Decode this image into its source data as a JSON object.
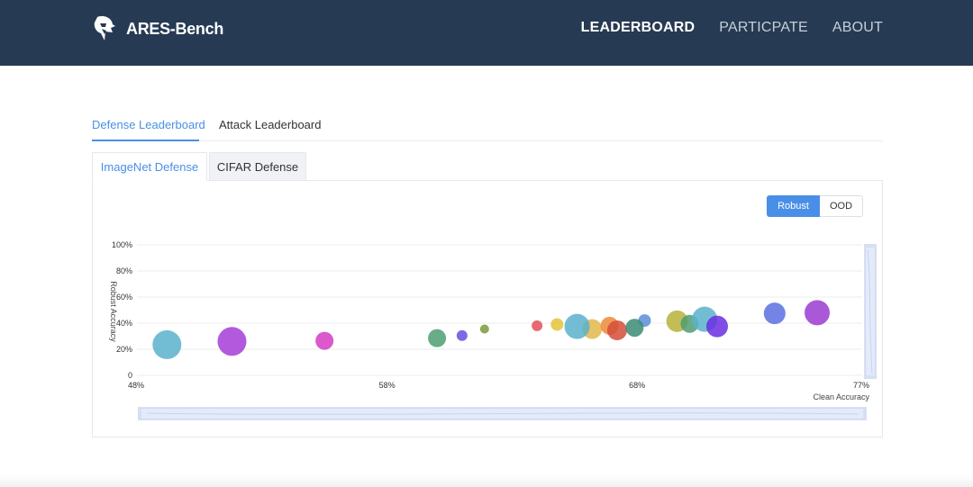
{
  "brand": {
    "name": "ARES-Bench",
    "logo_icon": "spartan-helmet-icon"
  },
  "nav": {
    "items": [
      {
        "label": "LEADERBOARD",
        "active": true
      },
      {
        "label": "PARTICPATE",
        "active": false
      },
      {
        "label": "ABOUT",
        "active": false
      }
    ]
  },
  "main_tabs": [
    {
      "label": "Defense Leaderboard",
      "active": true
    },
    {
      "label": "Attack Leaderboard",
      "active": false
    }
  ],
  "sub_tabs": [
    {
      "label": "ImageNet Defense",
      "active": true
    },
    {
      "label": "CIFAR Defense",
      "active": false
    }
  ],
  "toggle": {
    "options": [
      "Robust",
      "OOD"
    ],
    "selected": "Robust"
  },
  "colors": {
    "nav_bg": "#263a53",
    "accent": "#4a8fe7"
  },
  "chart_data": {
    "type": "scatter",
    "xlabel": "Clean Accuracy",
    "ylabel": "Robust  Accuracy",
    "x_ticks": [
      "48%",
      "58%",
      "68%",
      "77%"
    ],
    "y_ticks": [
      "0",
      "20%",
      "40%",
      "60%",
      "80%",
      "100%"
    ],
    "xlim": [
      48,
      77
    ],
    "ylim": [
      0,
      100
    ],
    "points": [
      {
        "x": 49.2,
        "y": 23.5,
        "size": 16,
        "color": "#5ab1cc"
      },
      {
        "x": 51.8,
        "y": 26.0,
        "size": 16,
        "color": "#a63cd8"
      },
      {
        "x": 55.5,
        "y": 26.5,
        "size": 10,
        "color": "#d43cc4"
      },
      {
        "x": 60.0,
        "y": 28.5,
        "size": 10,
        "color": "#4d9e73"
      },
      {
        "x": 61.0,
        "y": 30.5,
        "size": 6,
        "color": "#6a4ee0"
      },
      {
        "x": 61.9,
        "y": 35.5,
        "size": 5,
        "color": "#7a9a3a"
      },
      {
        "x": 64.0,
        "y": 38.0,
        "size": 6,
        "color": "#e25059"
      },
      {
        "x": 64.8,
        "y": 39.0,
        "size": 7,
        "color": "#e3c43a"
      },
      {
        "x": 66.2,
        "y": 35.5,
        "size": 11,
        "color": "#e0b84b"
      },
      {
        "x": 66.9,
        "y": 38.0,
        "size": 10,
        "color": "#ec8a3a"
      },
      {
        "x": 67.2,
        "y": 34.5,
        "size": 11,
        "color": "#d34e3a"
      },
      {
        "x": 65.6,
        "y": 37.5,
        "size": 14,
        "color": "#5ab1cc"
      },
      {
        "x": 68.3,
        "y": 42.0,
        "size": 7,
        "color": "#5c8ed8"
      },
      {
        "x": 67.9,
        "y": 36.5,
        "size": 10,
        "color": "#3a8c74"
      },
      {
        "x": 69.6,
        "y": 41.5,
        "size": 12,
        "color": "#b7b23a"
      },
      {
        "x": 70.1,
        "y": 39.5,
        "size": 10,
        "color": "#4d9e73"
      },
      {
        "x": 70.7,
        "y": 43.0,
        "size": 14,
        "color": "#5ab1cc"
      },
      {
        "x": 71.2,
        "y": 37.5,
        "size": 12,
        "color": "#6a2ee0"
      },
      {
        "x": 73.5,
        "y": 47.5,
        "size": 12,
        "color": "#5a6ee0"
      },
      {
        "x": 75.2,
        "y": 48.0,
        "size": 14,
        "color": "#9a3cd0"
      }
    ]
  }
}
